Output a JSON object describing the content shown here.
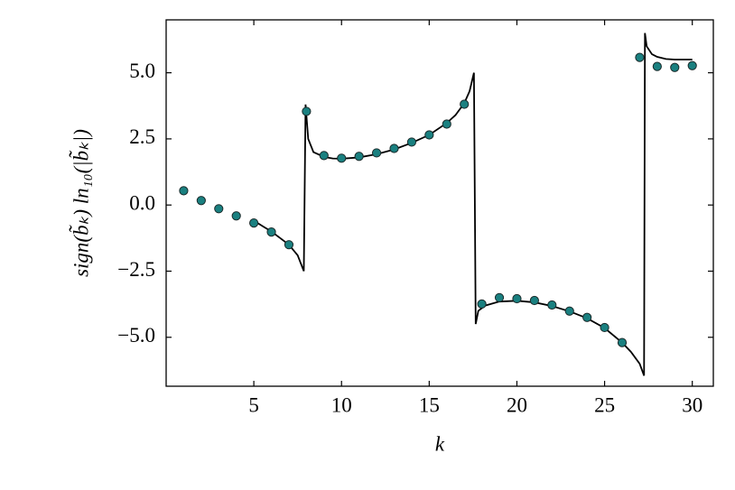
{
  "chart_data": {
    "type": "scatter",
    "x_label": "k",
    "y_label": "sign(b̃ₖ) ln₁₀(|b̃ₖ|)",
    "xlim": [
      0,
      31.2
    ],
    "ylim": [
      -6.85,
      7.0
    ],
    "xticks": [
      5,
      10,
      15,
      20,
      25,
      30
    ],
    "yticks": [
      {
        "value": 5.0,
        "label": "5.0"
      },
      {
        "value": 2.5,
        "label": "2.5"
      },
      {
        "value": 0,
        "label": "0.0"
      },
      {
        "value": -2.5,
        "label": "−2.5"
      },
      {
        "value": -5.0,
        "label": "−5.0"
      }
    ],
    "grid": false,
    "series": [
      {
        "mode": "line",
        "color": "#000000",
        "x": [
          4.9,
          5.5,
          6,
          6.5,
          7,
          7.5,
          7.85,
          7.95,
          8.1,
          8.4,
          9,
          9.5,
          10,
          11,
          12,
          13,
          14,
          15,
          16,
          16.5,
          17,
          17.3,
          17.55,
          17.65,
          17.8,
          18.2,
          19,
          20,
          21,
          22,
          23,
          24,
          25,
          26,
          26.5,
          27,
          27.25,
          27.3,
          27.4,
          27.7,
          28,
          28.5,
          29,
          30
        ],
        "values": [
          -0.55,
          -0.8,
          -1.0,
          -1.25,
          -1.5,
          -1.9,
          -2.5,
          3.8,
          2.5,
          2.0,
          1.82,
          1.76,
          1.75,
          1.8,
          1.92,
          2.1,
          2.35,
          2.65,
          3.1,
          3.4,
          3.85,
          4.3,
          5.0,
          -4.5,
          -4.0,
          -3.8,
          -3.65,
          -3.62,
          -3.68,
          -3.82,
          -4.02,
          -4.28,
          -4.65,
          -5.2,
          -5.55,
          -6.0,
          -6.45,
          6.5,
          6.0,
          5.7,
          5.6,
          5.52,
          5.5,
          5.5
        ]
      },
      {
        "mode": "markers",
        "color": "#1a8080",
        "x": [
          1,
          2,
          3,
          4,
          5,
          6,
          7,
          8,
          9,
          10,
          11,
          12,
          13,
          14,
          15,
          16,
          17,
          18,
          19,
          20,
          21,
          22,
          23,
          24,
          25,
          26,
          27,
          28,
          29,
          30
        ],
        "values": [
          0.54,
          0.17,
          -0.14,
          -0.41,
          -0.68,
          -1.02,
          -1.5,
          3.54,
          1.87,
          1.77,
          1.84,
          1.97,
          2.14,
          2.38,
          2.65,
          3.06,
          3.81,
          -3.74,
          -3.5,
          -3.54,
          -3.61,
          -3.78,
          -4.01,
          -4.25,
          -4.63,
          -5.2,
          5.58,
          5.24,
          5.2,
          5.27
        ]
      }
    ]
  }
}
